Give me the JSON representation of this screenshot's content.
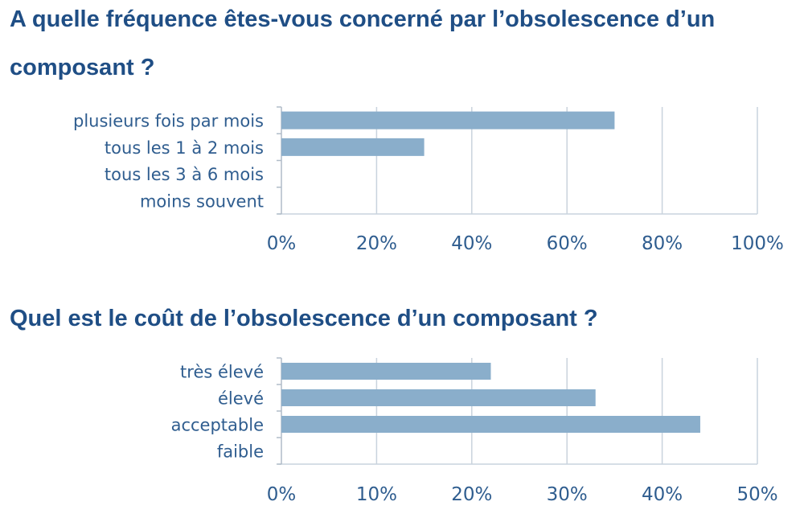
{
  "charts": [
    {
      "title": "A quelle fréquence êtes-vous concerné par l’obsolescence d’un composant ?",
      "chart_data": {
        "type": "bar",
        "orientation": "horizontal",
        "categories": [
          "plusieurs fois par mois",
          "tous les 1 à 2 mois",
          "tous les 3 à 6 mois",
          "moins souvent"
        ],
        "values": [
          70,
          30,
          0,
          0
        ],
        "xlim": [
          0,
          100
        ],
        "xticks": [
          "0%",
          "20%",
          "40%",
          "60%",
          "80%",
          "100%"
        ],
        "grid": true,
        "bar_color": "#8aaecb"
      }
    },
    {
      "title": "Quel est le coût de l’obsolescence d’un composant ?",
      "chart_data": {
        "type": "bar",
        "orientation": "horizontal",
        "categories": [
          "très élevé",
          "élevé",
          "acceptable",
          "faible"
        ],
        "values": [
          22,
          33,
          44,
          0
        ],
        "xlim": [
          0,
          50
        ],
        "xticks": [
          "0%",
          "10%",
          "20%",
          "30%",
          "40%",
          "50%"
        ],
        "grid": true,
        "bar_color": "#8aaecb"
      }
    }
  ]
}
